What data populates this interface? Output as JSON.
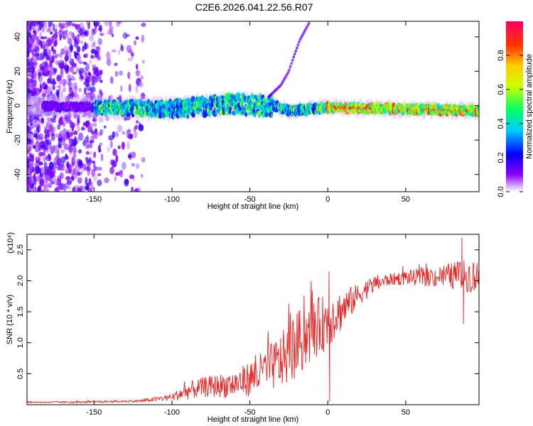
{
  "title": "C2E6.2026.041.22.56.R07",
  "chart_data": [
    {
      "type": "heatmap",
      "name": "spectrogram",
      "xlabel": "Height of straight line (km)",
      "ylabel": "Frequency (Hz)",
      "xlim": [
        -193,
        97
      ],
      "ylim": [
        -50,
        49
      ],
      "xticks": [
        -150,
        -100,
        -50,
        0,
        50
      ],
      "yticks": [
        -40,
        -20,
        0,
        20,
        40
      ],
      "colorbar": {
        "label": "Normalized spectral amplitude",
        "range": [
          0,
          1
        ],
        "ticks": [
          0.0,
          0.2,
          0.4,
          0.6,
          0.8
        ]
      },
      "ridge": {
        "description": "Doppler ridge centered near 0 Hz with a faint secondary trace rising from ~0 Hz at -35 km to ~45 Hz at -15 km",
        "center_hz": [
          [
            -193,
            0
          ],
          [
            -150,
            -1
          ],
          [
            -100,
            -2
          ],
          [
            -60,
            1
          ],
          [
            -35,
            0
          ],
          [
            -25,
            -3
          ],
          [
            0,
            -1
          ],
          [
            50,
            -2
          ],
          [
            97,
            -3
          ]
        ],
        "trace_hz": [
          [
            -38,
            5
          ],
          [
            -30,
            12
          ],
          [
            -25,
            20
          ],
          [
            -22,
            28
          ],
          [
            -18,
            38
          ],
          [
            -12,
            48
          ]
        ]
      }
    },
    {
      "type": "line",
      "name": "snr",
      "xlabel": "Height of straight line (km)",
      "ylabel": "SNR (10 * v/v)",
      "multiplier": "(x10⁴)",
      "multiplier_sup": "4",
      "color": "#ee2222",
      "xlim": [
        -193,
        97
      ],
      "ylim": [
        0,
        2.75
      ],
      "xticks": [
        -150,
        -100,
        -50,
        0,
        50
      ],
      "yticks": [
        0.5,
        1.0,
        1.5,
        2.0,
        2.5
      ],
      "trend": {
        "x": [
          -193,
          -160,
          -140,
          -120,
          -100,
          -90,
          -80,
          -60,
          -50,
          -40,
          -30,
          -20,
          -10,
          0,
          10,
          20,
          30,
          40,
          50,
          60,
          70,
          80,
          90,
          97
        ],
        "y": [
          0.04,
          0.04,
          0.05,
          0.06,
          0.12,
          0.22,
          0.28,
          0.33,
          0.42,
          0.55,
          0.7,
          0.95,
          1.2,
          1.35,
          1.55,
          1.78,
          1.95,
          2.02,
          2.05,
          2.05,
          2.07,
          2.08,
          2.08,
          2.05
        ]
      },
      "noise": {
        "x": [
          -193,
          -120,
          -100,
          -90,
          -60,
          -40,
          -20,
          0,
          20,
          40,
          60,
          80,
          97
        ],
        "amp": [
          0.01,
          0.02,
          0.06,
          0.14,
          0.22,
          0.35,
          0.55,
          0.45,
          0.18,
          0.1,
          0.14,
          0.22,
          0.3
        ]
      },
      "features": [
        {
          "x": 0.8,
          "y": 2.15,
          "note": "spike at 0 km"
        },
        {
          "x": 1.2,
          "y": 0.05,
          "note": "dip at 0 km"
        },
        {
          "x": 86,
          "y": 2.7,
          "note": "max near 86 km"
        },
        {
          "x": 87,
          "y": 1.3,
          "note": "min near 87 km"
        }
      ]
    }
  ]
}
